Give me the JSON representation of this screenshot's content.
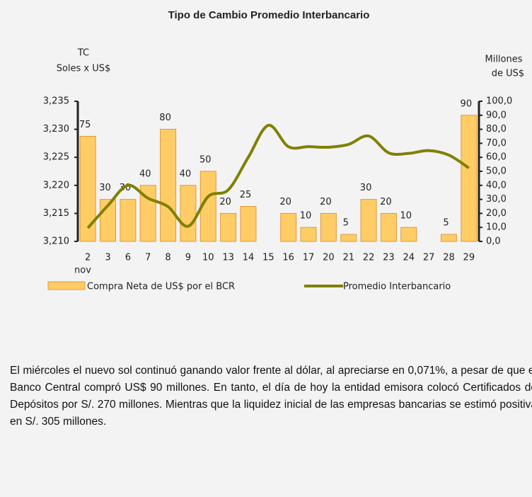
{
  "chart_data": {
    "type": "combo",
    "title": "Tipo de Cambio Promedio Interbancario",
    "y_label": [
      "TC",
      "Soles x US$"
    ],
    "y2_label": [
      "Millones",
      "de US$"
    ],
    "x_sublabel": "nov",
    "categories": [
      "2",
      "3",
      "6",
      "7",
      "8",
      "9",
      "10",
      "13",
      "14",
      "15",
      "16",
      "17",
      "20",
      "21",
      "22",
      "23",
      "24",
      "27",
      "28",
      "29"
    ],
    "series": [
      {
        "name": "Compra Neta de US$ por el BCR",
        "type": "bar",
        "axis": "y2",
        "color": "#FFCC66",
        "values": [
          75,
          30,
          30,
          40,
          80,
          40,
          50,
          20,
          25,
          null,
          20,
          10,
          20,
          5,
          30,
          20,
          10,
          null,
          5,
          90
        ]
      },
      {
        "name": "Promedio Interbancario",
        "type": "line",
        "axis": "y",
        "color": "#808000",
        "values": [
          3.2124,
          3.2164,
          3.22,
          3.2177,
          3.2162,
          3.2127,
          3.218,
          3.2192,
          3.225,
          3.2307,
          3.2269,
          3.2269,
          3.2268,
          3.2273,
          3.2288,
          3.2258,
          3.2257,
          3.2262,
          3.2254,
          3.2231
        ]
      }
    ],
    "ylim": [
      3.21,
      3.235
    ],
    "yticks": [
      {
        "value": 3.21,
        "label": "3,210"
      },
      {
        "value": 3.215,
        "label": "3,215"
      },
      {
        "value": 3.22,
        "label": "3,220"
      },
      {
        "value": 3.225,
        "label": "3,225"
      },
      {
        "value": 3.23,
        "label": "3,230"
      },
      {
        "value": 3.235,
        "label": "3,235"
      }
    ],
    "y2lim": [
      0,
      100
    ],
    "y2ticks": [
      {
        "value": 0,
        "label": "0,0"
      },
      {
        "value": 10,
        "label": "10,0"
      },
      {
        "value": 20,
        "label": "20,0"
      },
      {
        "value": 30,
        "label": "30,0"
      },
      {
        "value": 40,
        "label": "40,0"
      },
      {
        "value": 50,
        "label": "50,0"
      },
      {
        "value": 60,
        "label": "60,0"
      },
      {
        "value": 70,
        "label": "70,0"
      },
      {
        "value": 80,
        "label": "80,0"
      },
      {
        "value": 90,
        "label": "90,0"
      },
      {
        "value": 100,
        "label": "100,0"
      }
    ]
  },
  "paragraph": "El miércoles el nuevo sol continuó ganando valor frente al dólar, al apreciarse en 0,071%, a pesar de que el Banco Central compró US$ 90 millones. En tanto, el día de hoy la entidad emisora colocó Certificados de Depósitos por S/. 270 millones. Mientras que la liquidez inicial de las empresas bancarias se estimó positiva en S/. 305 millones."
}
